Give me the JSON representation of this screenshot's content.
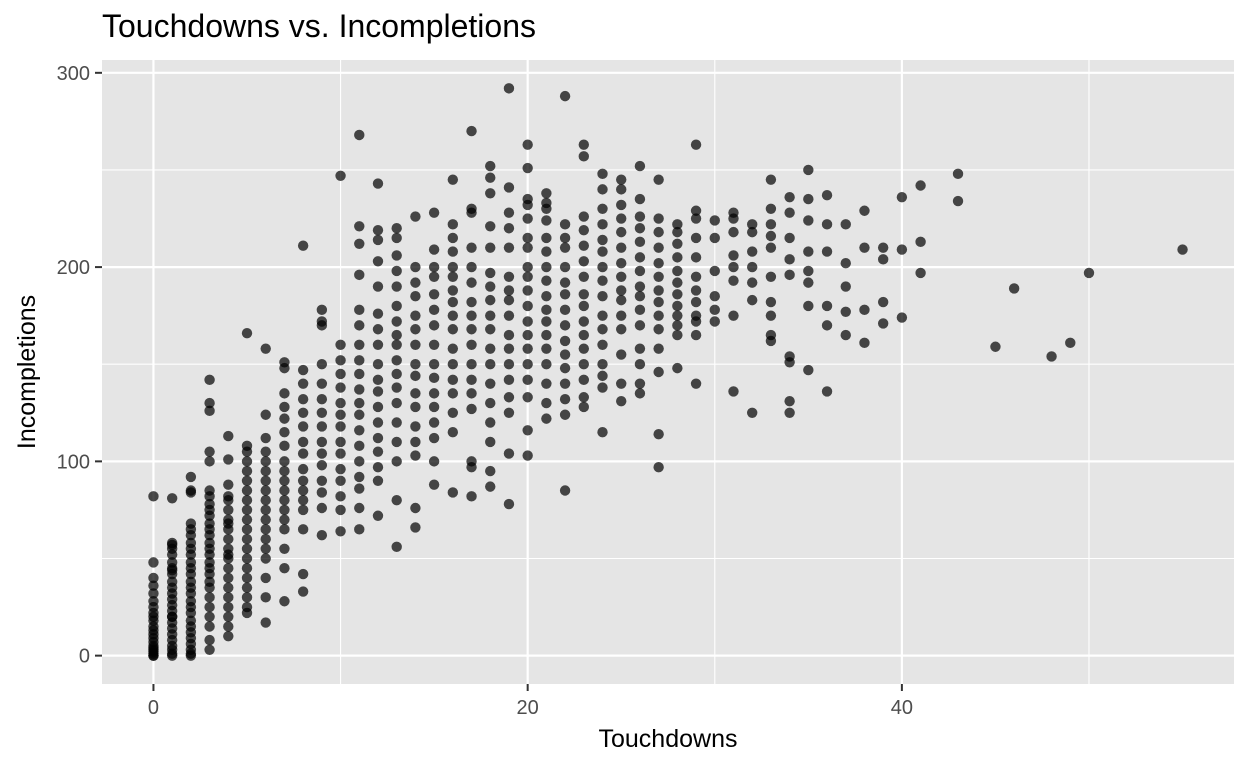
{
  "chart_data": {
    "type": "scatter",
    "title": "Touchdowns vs. Incompletions",
    "xlabel": "Touchdowns",
    "ylabel": "Incompletions",
    "xlim": [
      -2.75,
      57.75
    ],
    "ylim": [
      -14.6,
      306.6
    ],
    "x_ticks": [
      0,
      20,
      40
    ],
    "x_tick_labels": [
      "0",
      "20",
      "40"
    ],
    "y_ticks": [
      0,
      100,
      200,
      300
    ],
    "y_tick_labels": [
      "0",
      "100",
      "200",
      "300"
    ],
    "grid": true,
    "panel_background": "#e5e5e5",
    "grid_color": "#ffffff",
    "point_color": "#000000",
    "point_opacity": 0.7,
    "series": [
      {
        "x": [
          0,
          0,
          0,
          0,
          0,
          0,
          0,
          0,
          0,
          0,
          0,
          0,
          0,
          0,
          0,
          0,
          0,
          0,
          0,
          0,
          0,
          0,
          1,
          1,
          1,
          1,
          1,
          1,
          1,
          1,
          1,
          1,
          1,
          1,
          1,
          1,
          1,
          1,
          1,
          1,
          1,
          1,
          1,
          1,
          1,
          1,
          1,
          2,
          2,
          2,
          2,
          2,
          2,
          2,
          2,
          2,
          2,
          2,
          2,
          2,
          2,
          2,
          2,
          2,
          2,
          2,
          2,
          2,
          2,
          2,
          2,
          2,
          2,
          3,
          3,
          3,
          3,
          3,
          3,
          3,
          3,
          3,
          3,
          3,
          3,
          3,
          3,
          3,
          3,
          3,
          3,
          3,
          3,
          3,
          3,
          3,
          3,
          3,
          3,
          3,
          4,
          4,
          4,
          4,
          4,
          4,
          4,
          4,
          4,
          4,
          4,
          4,
          4,
          4,
          4,
          4,
          4,
          4,
          4,
          4,
          4,
          5,
          5,
          5,
          5,
          5,
          5,
          5,
          5,
          5,
          5,
          5,
          5,
          5,
          5,
          5,
          5,
          5,
          5,
          5,
          5,
          6,
          6,
          6,
          6,
          6,
          6,
          6,
          6,
          6,
          6,
          6,
          6,
          6,
          6,
          6,
          6,
          6,
          6,
          7,
          7,
          7,
          7,
          7,
          7,
          7,
          7,
          7,
          7,
          7,
          7,
          7,
          7,
          7,
          7,
          7,
          7,
          8,
          8,
          8,
          8,
          8,
          8,
          8,
          8,
          8,
          8,
          8,
          8,
          8,
          8,
          8,
          8,
          9,
          9,
          9,
          9,
          9,
          9,
          9,
          9,
          9,
          9,
          9,
          9,
          9,
          9,
          9,
          10,
          10,
          10,
          10,
          10,
          10,
          10,
          10,
          10,
          10,
          10,
          10,
          10,
          10,
          10,
          11,
          11,
          11,
          11,
          11,
          11,
          11,
          11,
          11,
          11,
          11,
          11,
          11,
          11,
          11,
          11,
          11,
          11,
          11,
          12,
          12,
          12,
          12,
          12,
          12,
          12,
          12,
          12,
          12,
          12,
          12,
          12,
          12,
          12,
          12,
          12,
          12,
          13,
          13,
          13,
          13,
          13,
          13,
          13,
          13,
          13,
          13,
          13,
          13,
          13,
          13,
          13,
          13,
          13,
          13,
          14,
          14,
          14,
          14,
          14,
          14,
          14,
          14,
          14,
          14,
          14,
          14,
          14,
          14,
          14,
          14,
          15,
          15,
          15,
          15,
          15,
          15,
          15,
          15,
          15,
          15,
          15,
          15,
          15,
          15,
          15,
          15,
          16,
          16,
          16,
          16,
          16,
          16,
          16,
          16,
          16,
          16,
          16,
          16,
          16,
          16,
          16,
          16,
          16,
          17,
          17,
          17,
          17,
          17,
          17,
          17,
          17,
          17,
          17,
          17,
          17,
          17,
          17,
          17,
          17,
          17,
          18,
          18,
          18,
          18,
          18,
          18,
          18,
          18,
          18,
          18,
          18,
          18,
          18,
          18,
          18,
          18,
          18,
          18,
          19,
          19,
          19,
          19,
          19,
          19,
          19,
          19,
          19,
          19,
          19,
          19,
          19,
          19,
          19,
          19,
          19,
          20,
          20,
          20,
          20,
          20,
          20,
          20,
          20,
          20,
          20,
          20,
          20,
          20,
          20,
          20,
          20,
          20,
          20,
          20,
          21,
          21,
          21,
          21,
          21,
          21,
          21,
          21,
          21,
          21,
          21,
          21,
          21,
          21,
          21,
          21,
          21,
          22,
          22,
          22,
          22,
          22,
          22,
          22,
          22,
          22,
          22,
          22,
          22,
          22,
          22,
          22,
          22,
          23,
          23,
          23,
          23,
          23,
          23,
          23,
          23,
          23,
          23,
          23,
          23,
          23,
          23,
          23,
          23,
          24,
          24,
          24,
          24,
          24,
          24,
          24,
          24,
          24,
          24,
          24,
          24,
          24,
          24,
          24,
          24,
          25,
          25,
          25,
          25,
          25,
          25,
          25,
          25,
          25,
          25,
          25,
          25,
          25,
          25,
          25,
          26,
          26,
          26,
          26,
          26,
          26,
          26,
          26,
          26,
          26,
          26,
          26,
          26,
          26,
          26,
          27,
          27,
          27,
          27,
          27,
          27,
          27,
          27,
          27,
          27,
          27,
          27,
          27,
          27,
          28,
          28,
          28,
          28,
          28,
          28,
          28,
          28,
          28,
          28,
          28,
          28,
          29,
          29,
          29,
          29,
          29,
          29,
          29,
          29,
          29,
          29,
          29,
          29,
          30,
          30,
          30,
          30,
          30,
          30,
          31,
          31,
          31,
          31,
          31,
          31,
          31,
          31,
          32,
          32,
          32,
          32,
          32,
          32,
          32,
          33,
          33,
          33,
          33,
          33,
          33,
          33,
          33,
          33,
          33,
          34,
          34,
          34,
          34,
          34,
          34,
          34,
          34,
          34,
          35,
          35,
          35,
          35,
          35,
          35,
          35,
          35,
          36,
          36,
          36,
          36,
          36,
          36,
          37,
          37,
          37,
          37,
          37,
          38,
          38,
          38,
          38,
          39,
          39,
          39,
          39,
          40,
          40,
          40,
          41,
          41,
          41,
          43,
          43,
          45,
          46,
          48,
          49,
          50,
          55
        ],
        "y": [
          82,
          48,
          40,
          36,
          32,
          28,
          25,
          22,
          20,
          18,
          15,
          13,
          11,
          9,
          7,
          5,
          4,
          3,
          2,
          1,
          0,
          0,
          81,
          58,
          55,
          52,
          48,
          45,
          42,
          38,
          35,
          32,
          29,
          26,
          23,
          20,
          17,
          14,
          11,
          8,
          5,
          3,
          1,
          0,
          57,
          44,
          20,
          92,
          85,
          68,
          65,
          62,
          58,
          55,
          52,
          48,
          45,
          42,
          38,
          35,
          32,
          28,
          25,
          22,
          18,
          15,
          12,
          9,
          6,
          3,
          1,
          0,
          84,
          142,
          130,
          126,
          105,
          100,
          85,
          82,
          78,
          75,
          72,
          68,
          65,
          62,
          58,
          55,
          52,
          48,
          45,
          42,
          38,
          35,
          30,
          25,
          20,
          15,
          8,
          3,
          101,
          88,
          80,
          75,
          70,
          65,
          60,
          55,
          50,
          45,
          40,
          35,
          30,
          25,
          20,
          15,
          10,
          82,
          68,
          52,
          113,
          108,
          100,
          95,
          90,
          85,
          80,
          75,
          70,
          65,
          60,
          55,
          50,
          45,
          40,
          35,
          30,
          25,
          22,
          105,
          166,
          124,
          112,
          105,
          100,
          95,
          90,
          85,
          80,
          75,
          70,
          65,
          60,
          55,
          50,
          40,
          30,
          17,
          158,
          148,
          135,
          128,
          122,
          115,
          108,
          100,
          95,
          90,
          85,
          80,
          75,
          70,
          65,
          55,
          45,
          28,
          151,
          147,
          140,
          132,
          125,
          118,
          110,
          104,
          96,
          90,
          85,
          80,
          75,
          65,
          42,
          33,
          211,
          178,
          170,
          150,
          140,
          132,
          125,
          118,
          110,
          104,
          98,
          90,
          84,
          76,
          62,
          172,
          160,
          152,
          145,
          138,
          130,
          124,
          118,
          110,
          104,
          96,
          90,
          82,
          75,
          64,
          247,
          221,
          212,
          196,
          178,
          170,
          160,
          152,
          145,
          137,
          130,
          124,
          116,
          108,
          100,
          92,
          86,
          76,
          65,
          268,
          243,
          214,
          203,
          190,
          176,
          168,
          160,
          150,
          142,
          136,
          128,
          120,
          112,
          105,
          97,
          90,
          72,
          219,
          215,
          206,
          198,
          190,
          180,
          172,
          165,
          160,
          152,
          145,
          138,
          130,
          120,
          110,
          100,
          80,
          56,
          220,
          200,
          192,
          185,
          175,
          168,
          160,
          150,
          144,
          135,
          128,
          118,
          110,
          103,
          76,
          66,
          226,
          209,
          200,
          195,
          186,
          178,
          170,
          160,
          150,
          143,
          135,
          128,
          120,
          112,
          100,
          88,
          228,
          222,
          215,
          208,
          200,
          195,
          188,
          182,
          175,
          168,
          158,
          150,
          142,
          135,
          125,
          115,
          84,
          245,
          230,
          228,
          210,
          200,
          192,
          182,
          175,
          168,
          160,
          150,
          142,
          135,
          127,
          100,
          97,
          82,
          270,
          246,
          238,
          221,
          210,
          197,
          190,
          183,
          175,
          168,
          158,
          150,
          140,
          130,
          120,
          110,
          95,
          87,
          252,
          241,
          228,
          220,
          210,
          195,
          188,
          183,
          175,
          165,
          158,
          150,
          142,
          133,
          125,
          104,
          78,
          292,
          263,
          235,
          232,
          225,
          215,
          210,
          200,
          195,
          188,
          180,
          172,
          165,
          158,
          150,
          142,
          133,
          116,
          103,
          251,
          238,
          233,
          224,
          215,
          208,
          200,
          193,
          185,
          178,
          172,
          165,
          158,
          150,
          140,
          130,
          122,
          230,
          222,
          215,
          210,
          200,
          192,
          186,
          178,
          170,
          162,
          155,
          148,
          140,
          132,
          124,
          85,
          288,
          257,
          226,
          219,
          211,
          203,
          195,
          186,
          180,
          172,
          165,
          158,
          150,
          142,
          133,
          128,
          263,
          240,
          230,
          222,
          214,
          208,
          200,
          193,
          185,
          175,
          168,
          160,
          150,
          144,
          138,
          115,
          248,
          240,
          232,
          225,
          218,
          210,
          202,
          195,
          188,
          183,
          175,
          168,
          155,
          140,
          131,
          245,
          235,
          226,
          220,
          213,
          205,
          198,
          190,
          185,
          178,
          170,
          158,
          150,
          140,
          135,
          252,
          245,
          225,
          218,
          210,
          202,
          195,
          188,
          182,
          175,
          168,
          158,
          146,
          114,
          97,
          222,
          218,
          212,
          205,
          198,
          192,
          186,
          180,
          175,
          170,
          165,
          148,
          263,
          229,
          225,
          215,
          205,
          195,
          188,
          182,
          175,
          172,
          165,
          140,
          224,
          215,
          198,
          185,
          178,
          172,
          228,
          225,
          218,
          206,
          200,
          193,
          175,
          136,
          222,
          218,
          208,
          200,
          192,
          183,
          125,
          245,
          230,
          222,
          216,
          210,
          195,
          182,
          175,
          165,
          162,
          236,
          228,
          215,
          204,
          196,
          154,
          151,
          131,
          125,
          250,
          235,
          224,
          208,
          198,
          192,
          180,
          147,
          237,
          222,
          208,
          180,
          170,
          136,
          222,
          202,
          190,
          177,
          165,
          229,
          210,
          178,
          161,
          210,
          204,
          182,
          171,
          236,
          209,
          174,
          242,
          213,
          197,
          248,
          234,
          159,
          189,
          154,
          161,
          197,
          209
        ]
      }
    ]
  }
}
